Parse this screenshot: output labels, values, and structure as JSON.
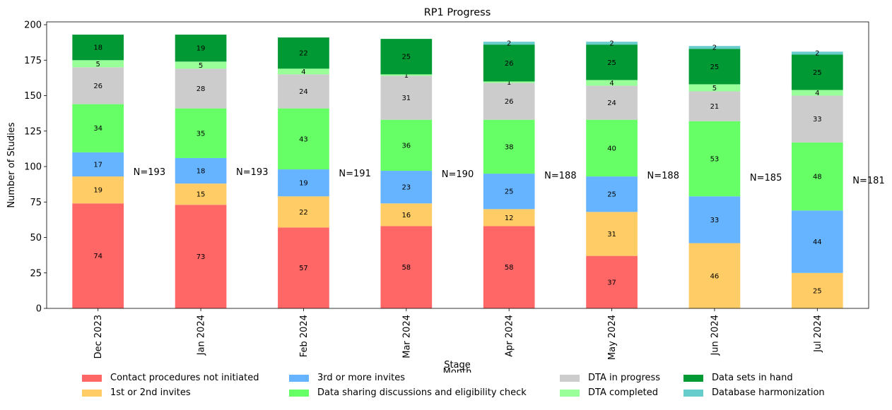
{
  "chart_data": {
    "type": "stacked-bar",
    "title": "RP1 Progress",
    "xlabel": "Month",
    "ylabel": "Number of Studies",
    "legend_title": "Stage",
    "ylim": [
      0,
      202
    ],
    "yticks": [
      0,
      25,
      50,
      75,
      100,
      125,
      150,
      175,
      200
    ],
    "categories": [
      "Dec 2023",
      "Jan 2024",
      "Feb 2024",
      "Mar 2024",
      "Apr 2024",
      "May 2024",
      "Jun 2024",
      "Jul 2024"
    ],
    "totals": [
      "N=193",
      "N=193",
      "N=191",
      "N=190",
      "N=188",
      "N=188",
      "N=185",
      "N=181"
    ],
    "series": [
      {
        "name": "Contact procedures not initiated",
        "color": "#ff6666",
        "values": [
          74,
          73,
          57,
          58,
          58,
          37,
          0,
          0
        ]
      },
      {
        "name": "1st or 2nd invites",
        "color": "#ffcc66",
        "values": [
          19,
          15,
          22,
          16,
          12,
          31,
          46,
          25
        ]
      },
      {
        "name": "3rd or more invites",
        "color": "#66b3ff",
        "values": [
          17,
          18,
          19,
          23,
          25,
          25,
          33,
          44
        ]
      },
      {
        "name": "Data sharing discussions and eligibility check",
        "color": "#66ff66",
        "values": [
          34,
          35,
          43,
          36,
          38,
          40,
          53,
          48
        ]
      },
      {
        "name": "DTA in progress",
        "color": "#cccccc",
        "values": [
          26,
          28,
          24,
          31,
          26,
          24,
          21,
          33
        ]
      },
      {
        "name": "DTA completed",
        "color": "#99ff99",
        "values": [
          5,
          5,
          4,
          1,
          1,
          4,
          5,
          4
        ]
      },
      {
        "name": "Data sets in hand",
        "color": "#009933",
        "values": [
          18,
          19,
          22,
          25,
          26,
          25,
          25,
          25
        ]
      },
      {
        "name": "Database harmonization",
        "color": "#66cccc",
        "values": [
          0,
          0,
          0,
          0,
          2,
          2,
          2,
          2
        ]
      }
    ],
    "legend_position": "bottom",
    "grid": false
  }
}
